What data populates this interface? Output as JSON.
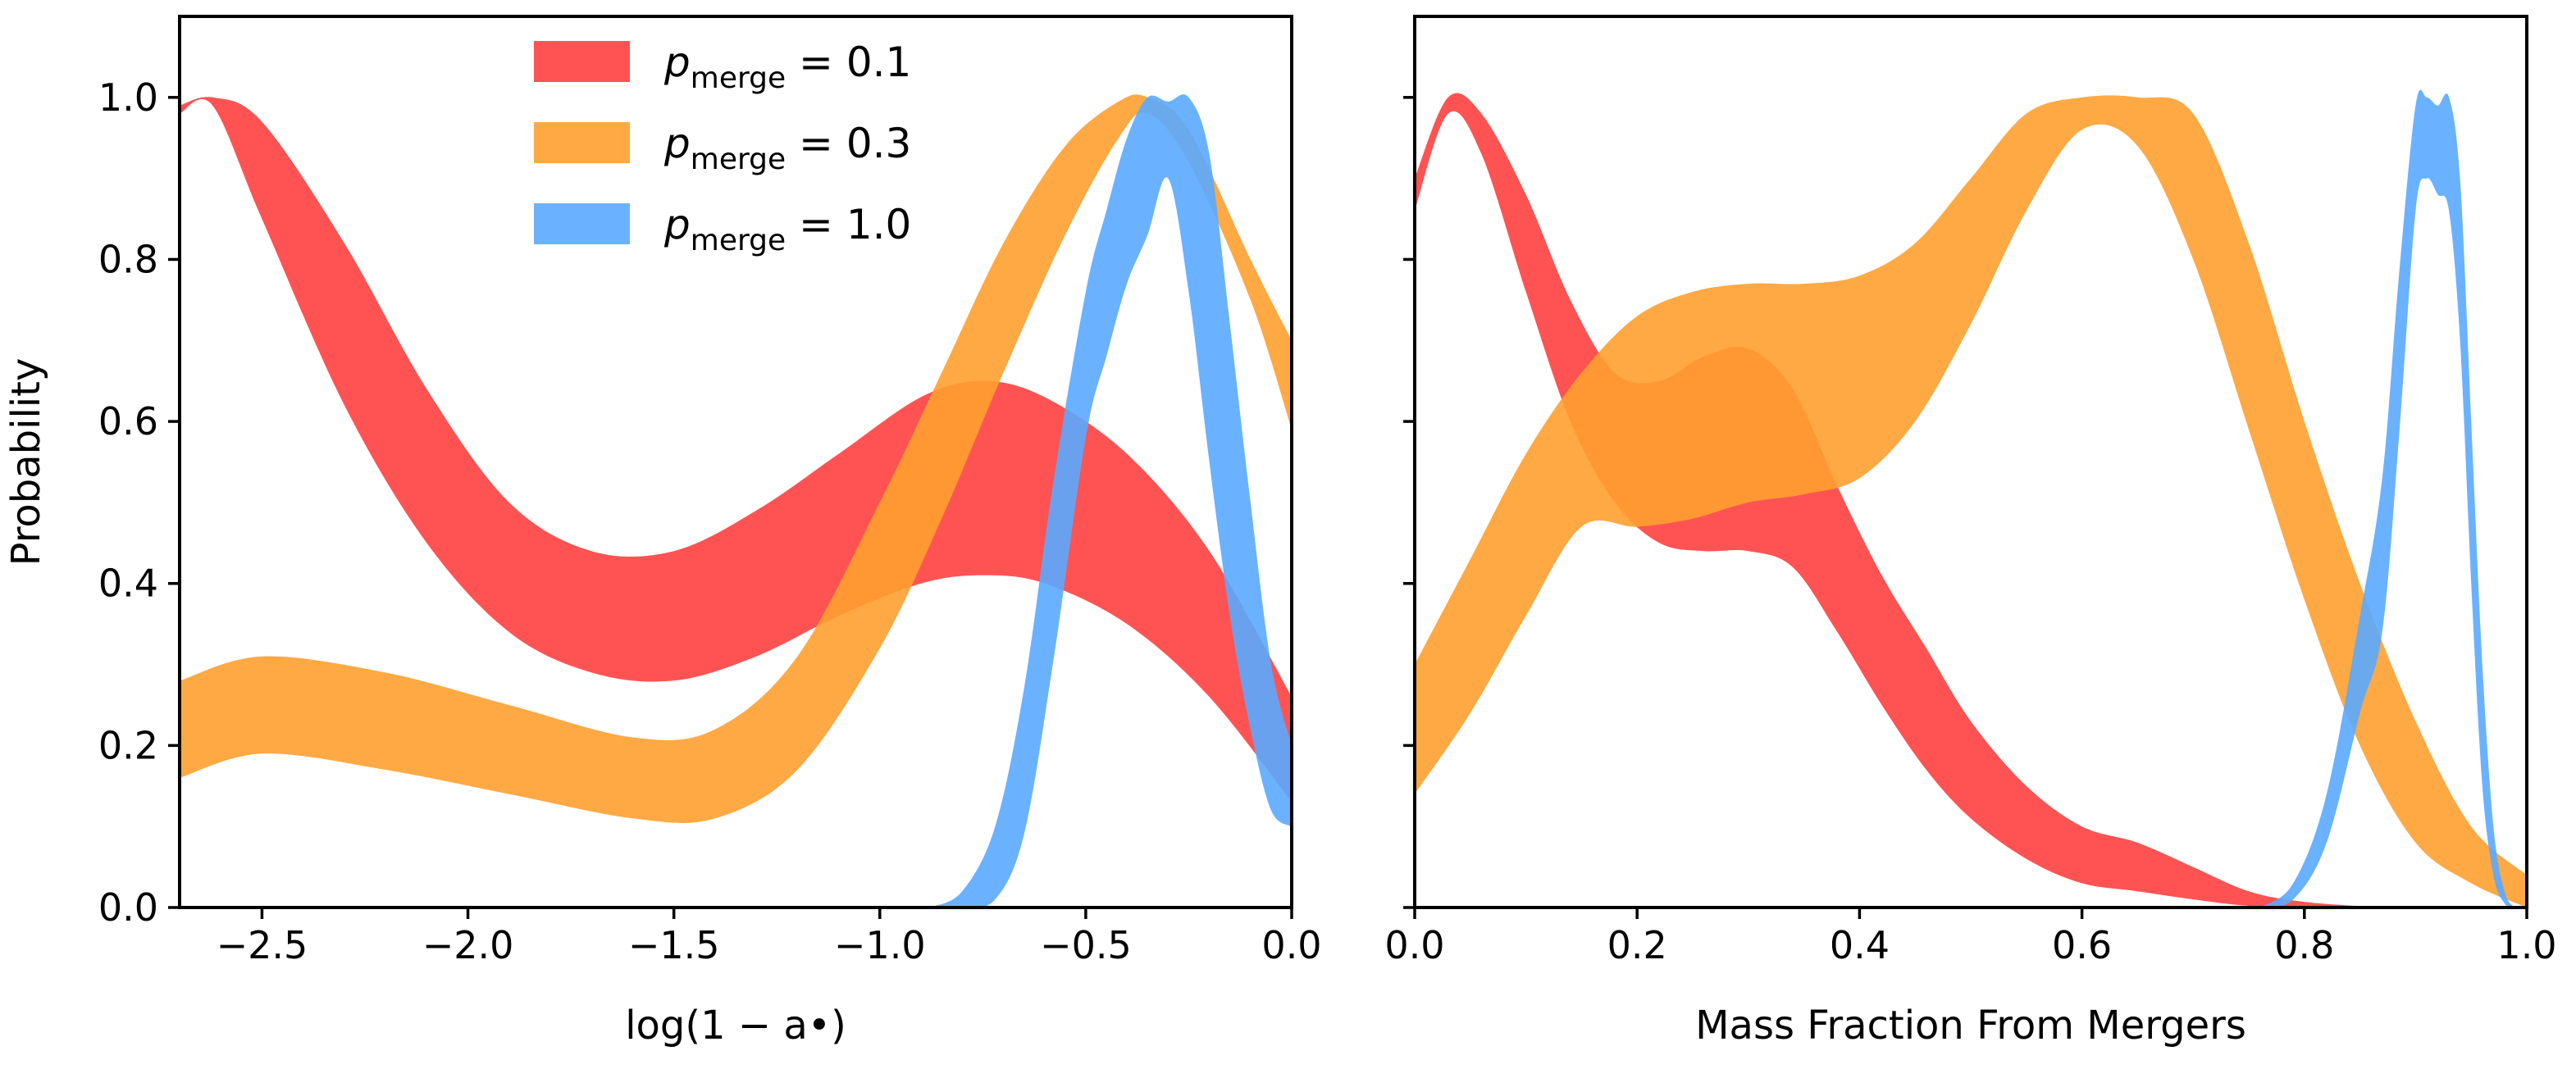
{
  "chart_data": [
    {
      "type": "area",
      "title": "",
      "xlabel": "log(1 − a•)",
      "ylabel": "Probability",
      "xlim": [
        -2.7,
        0.0
      ],
      "ylim": [
        0.0,
        1.1
      ],
      "xticks": [
        -2.5,
        -2.0,
        -1.5,
        -1.0,
        -0.5,
        0.0
      ],
      "xtick_labels": [
        "−2.5",
        "−2.0",
        "−1.5",
        "−1.0",
        "−0.5",
        "0.0"
      ],
      "yticks": [
        0.0,
        0.2,
        0.4,
        0.6,
        0.8,
        1.0
      ],
      "ytick_labels": [
        "0.0",
        "0.2",
        "0.4",
        "0.6",
        "0.8",
        "1.0"
      ],
      "legend": "top-center",
      "series": [
        {
          "name": "p_merge = 0.1",
          "color": "#ff4040",
          "x": [
            -2.7,
            -2.62,
            -2.5,
            -2.3,
            -2.1,
            -1.9,
            -1.7,
            -1.5,
            -1.3,
            -1.1,
            -0.9,
            -0.75,
            -0.6,
            -0.4,
            -0.2,
            0.0
          ],
          "upper": [
            0.99,
            1.0,
            0.97,
            0.82,
            0.64,
            0.5,
            0.44,
            0.44,
            0.49,
            0.56,
            0.63,
            0.65,
            0.63,
            0.56,
            0.44,
            0.26
          ],
          "lower": [
            0.98,
            0.99,
            0.85,
            0.62,
            0.45,
            0.34,
            0.29,
            0.28,
            0.31,
            0.36,
            0.4,
            0.41,
            0.4,
            0.35,
            0.26,
            0.13
          ]
        },
        {
          "name": "p_merge = 0.3",
          "color": "#ffa030",
          "x": [
            -2.7,
            -2.5,
            -2.2,
            -1.9,
            -1.6,
            -1.4,
            -1.2,
            -1.0,
            -0.85,
            -0.7,
            -0.55,
            -0.42,
            -0.35,
            -0.25,
            -0.1,
            0.0
          ],
          "upper": [
            0.28,
            0.31,
            0.29,
            0.25,
            0.21,
            0.22,
            0.31,
            0.5,
            0.66,
            0.82,
            0.94,
            0.995,
            1.0,
            0.96,
            0.8,
            0.7
          ],
          "lower": [
            0.16,
            0.19,
            0.17,
            0.14,
            0.11,
            0.11,
            0.17,
            0.32,
            0.48,
            0.66,
            0.83,
            0.95,
            0.98,
            0.92,
            0.75,
            0.59
          ]
        },
        {
          "name": "p_merge = 1.0",
          "color": "#5aaaff",
          "x": [
            -0.88,
            -0.8,
            -0.72,
            -0.65,
            -0.58,
            -0.5,
            -0.45,
            -0.4,
            -0.35,
            -0.3,
            -0.25,
            -0.2,
            -0.15,
            -0.1,
            -0.05,
            0.0
          ],
          "upper": [
            0.0,
            0.02,
            0.1,
            0.27,
            0.52,
            0.76,
            0.86,
            0.95,
            1.0,
            0.995,
            1.0,
            0.93,
            0.72,
            0.5,
            0.3,
            0.2
          ],
          "lower": [
            0.0,
            0.0,
            0.01,
            0.09,
            0.3,
            0.58,
            0.68,
            0.77,
            0.83,
            0.9,
            0.76,
            0.55,
            0.36,
            0.22,
            0.12,
            0.1
          ]
        }
      ]
    },
    {
      "type": "area",
      "title": "",
      "xlabel": "Mass Fraction From Mergers",
      "ylabel": "",
      "xlim": [
        0.0,
        1.0
      ],
      "ylim": [
        0.0,
        1.1
      ],
      "xticks": [
        0.0,
        0.2,
        0.4,
        0.6,
        0.8,
        1.0
      ],
      "xtick_labels": [
        "0.0",
        "0.2",
        "0.4",
        "0.6",
        "0.8",
        "1.0"
      ],
      "yticks": [
        0.0,
        0.2,
        0.4,
        0.6,
        0.8,
        1.0
      ],
      "series": [
        {
          "name": "p_merge = 0.1",
          "color": "#ff4040",
          "x": [
            0.0,
            0.03,
            0.06,
            0.1,
            0.14,
            0.18,
            0.22,
            0.26,
            0.3,
            0.34,
            0.38,
            0.42,
            0.46,
            0.5,
            0.55,
            0.6,
            0.65,
            0.7,
            0.75,
            0.8,
            0.87
          ],
          "upper": [
            0.9,
            1.0,
            0.98,
            0.88,
            0.75,
            0.66,
            0.65,
            0.68,
            0.69,
            0.64,
            0.52,
            0.41,
            0.32,
            0.23,
            0.15,
            0.1,
            0.08,
            0.05,
            0.02,
            0.007,
            0.0
          ],
          "lower": [
            0.86,
            0.98,
            0.93,
            0.76,
            0.6,
            0.5,
            0.45,
            0.44,
            0.44,
            0.42,
            0.34,
            0.25,
            0.17,
            0.11,
            0.06,
            0.03,
            0.02,
            0.01,
            0.002,
            0.0,
            0.0
          ]
        },
        {
          "name": "p_merge = 0.3",
          "color": "#ffa030",
          "x": [
            0.0,
            0.05,
            0.1,
            0.15,
            0.2,
            0.25,
            0.3,
            0.35,
            0.4,
            0.45,
            0.5,
            0.55,
            0.6,
            0.65,
            0.7,
            0.75,
            0.8,
            0.85,
            0.9,
            0.95,
            1.0
          ],
          "upper": [
            0.3,
            0.43,
            0.56,
            0.66,
            0.73,
            0.76,
            0.77,
            0.77,
            0.78,
            0.82,
            0.9,
            0.98,
            1.0,
            1.0,
            0.98,
            0.82,
            0.6,
            0.4,
            0.23,
            0.1,
            0.04
          ],
          "lower": [
            0.14,
            0.24,
            0.36,
            0.47,
            0.47,
            0.48,
            0.5,
            0.51,
            0.53,
            0.6,
            0.72,
            0.86,
            0.96,
            0.94,
            0.8,
            0.59,
            0.38,
            0.2,
            0.08,
            0.03,
            0.0
          ]
        },
        {
          "name": "p_merge = 1.0",
          "color": "#5aaaff",
          "x": [
            0.76,
            0.79,
            0.82,
            0.85,
            0.87,
            0.885,
            0.9,
            0.91,
            0.92,
            0.93,
            0.94,
            0.95,
            0.96,
            0.97,
            0.98,
            0.99,
            1.0
          ],
          "upper": [
            0.0,
            0.03,
            0.14,
            0.36,
            0.53,
            0.78,
            0.99,
            1.0,
            0.99,
            1.0,
            0.9,
            0.6,
            0.3,
            0.1,
            0.02,
            0.0,
            0.0
          ],
          "lower": [
            0.0,
            0.01,
            0.08,
            0.24,
            0.34,
            0.58,
            0.86,
            0.9,
            0.88,
            0.86,
            0.7,
            0.4,
            0.15,
            0.04,
            0.005,
            0.0,
            0.0
          ]
        }
      ]
    }
  ],
  "legend": {
    "entries": [
      {
        "base": "p",
        "sub": "merge",
        "eq": " = 0.1",
        "color": "#ff4040"
      },
      {
        "base": "p",
        "sub": "merge",
        "eq": " = 0.3",
        "color": "#ffa030"
      },
      {
        "base": "p",
        "sub": "merge",
        "eq": " = 1.0",
        "color": "#5aaaff"
      }
    ]
  }
}
